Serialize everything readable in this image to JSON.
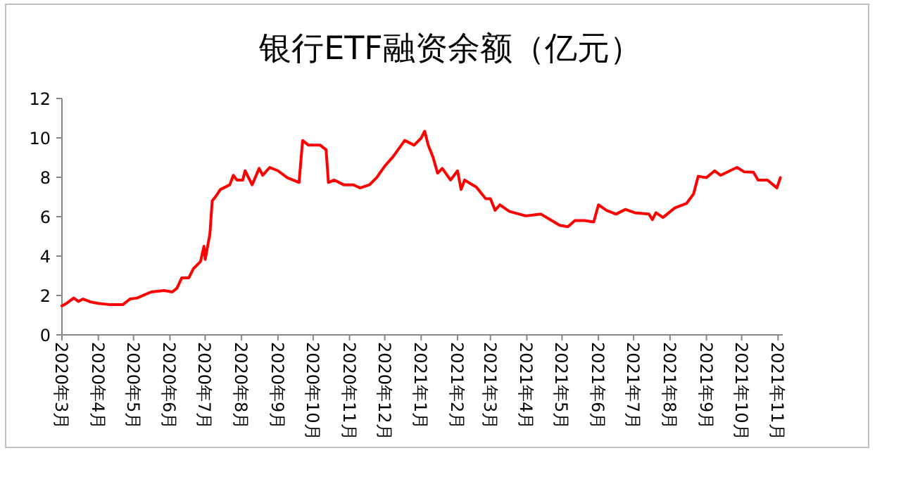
{
  "chart_data": {
    "type": "line",
    "title": "银行ETF融资余额（亿元）",
    "xlim": [
      "2020-03-01",
      "2021-11-05"
    ],
    "ylim": [
      0,
      12
    ],
    "yticks": [
      0,
      2,
      4,
      6,
      8,
      10,
      12
    ],
    "xticks": [
      {
        "value": "2020-03",
        "label": "2020年3月"
      },
      {
        "value": "2020-04",
        "label": "2020年4月"
      },
      {
        "value": "2020-05",
        "label": "2020年5月"
      },
      {
        "value": "2020-06",
        "label": "2020年6月"
      },
      {
        "value": "2020-07",
        "label": "2020年7月"
      },
      {
        "value": "2020-08",
        "label": "2020年8月"
      },
      {
        "value": "2020-09",
        "label": "2020年9月"
      },
      {
        "value": "2020-10",
        "label": "2020年10月"
      },
      {
        "value": "2020-11",
        "label": "2020年11月"
      },
      {
        "value": "2020-12",
        "label": "2020年12月"
      },
      {
        "value": "2021-01",
        "label": "2021年1月"
      },
      {
        "value": "2021-02",
        "label": "2021年2月"
      },
      {
        "value": "2021-03",
        "label": "2021年3月"
      },
      {
        "value": "2021-04",
        "label": "2021年4月"
      },
      {
        "value": "2021-05",
        "label": "2021年5月"
      },
      {
        "value": "2021-06",
        "label": "2021年6月"
      },
      {
        "value": "2021-07",
        "label": "2021年7月"
      },
      {
        "value": "2021-08",
        "label": "2021年8月"
      },
      {
        "value": "2021-09",
        "label": "2021年9月"
      },
      {
        "value": "2021-10",
        "label": "2021年10月"
      },
      {
        "value": "2021-11",
        "label": "2021年11月"
      }
    ],
    "grid": false,
    "marker": "none",
    "line_style": "solid",
    "series": [
      {
        "color": "#ff0000",
        "x": [
          "2020-03-01",
          "2020-03-05",
          "2020-03-11",
          "2020-03-15",
          "2020-03-19",
          "2020-03-25",
          "2020-04-01",
          "2020-04-10",
          "2020-04-22",
          "2020-04-28",
          "2020-05-04",
          "2020-05-16",
          "2020-05-27",
          "2020-06-03",
          "2020-06-07",
          "2020-06-11",
          "2020-06-17",
          "2020-06-21",
          "2020-06-27",
          "2020-06-30",
          "2020-07-01",
          "2020-07-05",
          "2020-07-07",
          "2020-07-10",
          "2020-07-14",
          "2020-07-22",
          "2020-07-25",
          "2020-07-28",
          "2020-08-02",
          "2020-08-04",
          "2020-08-10",
          "2020-08-16",
          "2020-08-19",
          "2020-08-25",
          "2020-09-01",
          "2020-09-09",
          "2020-09-19",
          "2020-09-22",
          "2020-09-27",
          "2020-10-07",
          "2020-10-12",
          "2020-10-14",
          "2020-10-19",
          "2020-10-27",
          "2020-11-04",
          "2020-11-10",
          "2020-11-18",
          "2020-11-24",
          "2020-12-01",
          "2020-12-08",
          "2020-12-18",
          "2020-12-26",
          "2021-01-01",
          "2021-01-04",
          "2021-01-07",
          "2021-01-11",
          "2021-01-15",
          "2021-01-19",
          "2021-01-26",
          "2021-02-01",
          "2021-02-04",
          "2021-02-07",
          "2021-02-17",
          "2021-02-25",
          "2021-03-01",
          "2021-03-05",
          "2021-03-09",
          "2021-03-17",
          "2021-03-31",
          "2021-04-13",
          "2021-04-21",
          "2021-04-29",
          "2021-05-06",
          "2021-05-12",
          "2021-05-20",
          "2021-05-28",
          "2021-06-01",
          "2021-06-08",
          "2021-06-16",
          "2021-06-24",
          "2021-07-02",
          "2021-07-14",
          "2021-07-17",
          "2021-07-20",
          "2021-07-26",
          "2021-08-05",
          "2021-08-15",
          "2021-08-21",
          "2021-08-25",
          "2021-09-01",
          "2021-09-08",
          "2021-09-13",
          "2021-09-21",
          "2021-09-27",
          "2021-10-03",
          "2021-10-11",
          "2021-10-15",
          "2021-10-23",
          "2021-10-31",
          "2021-11-03"
        ],
        "values": [
          1.47,
          1.6,
          1.87,
          1.7,
          1.82,
          1.68,
          1.6,
          1.54,
          1.54,
          1.82,
          1.87,
          2.18,
          2.25,
          2.18,
          2.37,
          2.89,
          2.89,
          3.36,
          3.72,
          4.5,
          3.83,
          5.1,
          6.8,
          7.03,
          7.38,
          7.62,
          8.1,
          7.86,
          7.86,
          8.33,
          7.62,
          8.45,
          8.1,
          8.5,
          8.33,
          7.98,
          7.74,
          9.87,
          9.63,
          9.63,
          9.4,
          7.74,
          7.86,
          7.62,
          7.62,
          7.46,
          7.62,
          7.98,
          8.57,
          9.04,
          9.87,
          9.63,
          9.99,
          10.34,
          9.63,
          9.04,
          8.21,
          8.45,
          7.86,
          8.33,
          7.38,
          7.86,
          7.5,
          6.91,
          6.91,
          6.32,
          6.6,
          6.27,
          6.04,
          6.13,
          5.85,
          5.56,
          5.49,
          5.8,
          5.8,
          5.73,
          6.6,
          6.32,
          6.13,
          6.37,
          6.2,
          6.13,
          5.85,
          6.2,
          5.96,
          6.44,
          6.67,
          7.15,
          8.05,
          7.98,
          8.33,
          8.1,
          8.33,
          8.5,
          8.28,
          8.26,
          7.86,
          7.86,
          7.46,
          7.98
        ]
      }
    ]
  }
}
